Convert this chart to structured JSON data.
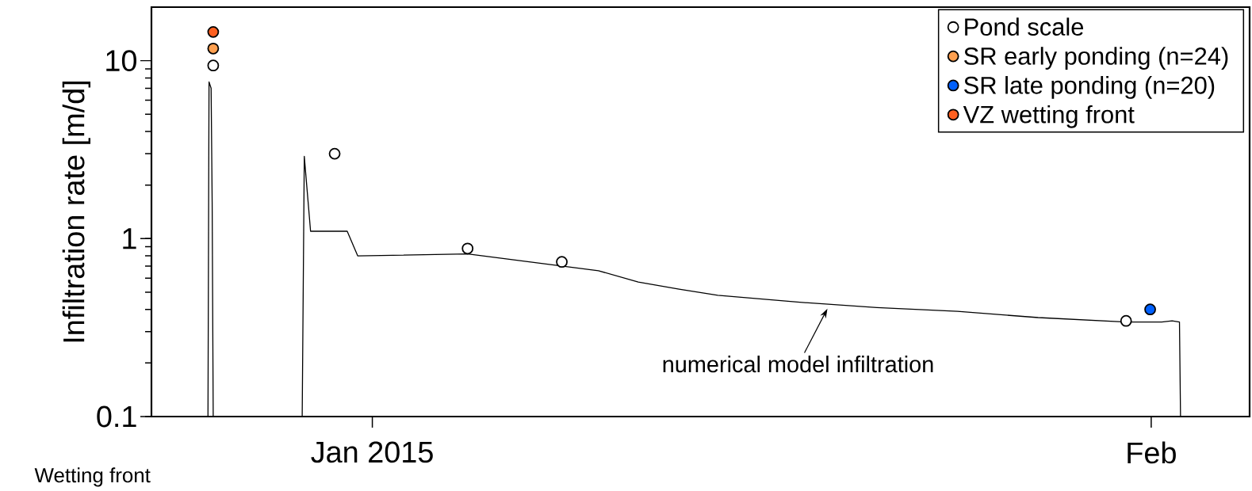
{
  "chart_data": {
    "type": "scatter",
    "ylabel": "Infiltration rate [m/d]",
    "log": "y",
    "xlim": [
      "2014-12-23T05:00",
      "2015-02-04T22:00"
    ],
    "xticks": [
      {
        "value": "2015-01-01",
        "label": "Jan 2015"
      },
      {
        "value": "2015-02-01",
        "label": "Feb"
      }
    ],
    "ylim": [
      0.1,
      20
    ],
    "yticks": [
      0.1,
      1,
      10
    ],
    "legend": "top right",
    "marker": "circle",
    "series": [
      {
        "name": "Pond scale",
        "color": "#ffffff",
        "x": [
          "2014-12-25T16:00",
          "2014-12-30T12:00",
          "2015-01-04T19:00",
          "2015-01-08T13:00",
          "2015-01-31T00:00"
        ],
        "values": [
          9.4,
          3.0,
          0.88,
          0.74,
          0.345
        ]
      },
      {
        "name": "SR early ponding (n=24)",
        "type": "scatter",
        "color": "#ffa050",
        "x": [
          "2014-12-25T16:00"
        ],
        "values": [
          11.7
        ]
      },
      {
        "name": "SR late ponding (n=20)",
        "type": "scatter",
        "color": "#0060ff",
        "x": [
          "2015-01-31T23:00"
        ],
        "values": [
          0.4
        ]
      },
      {
        "name": "VZ wetting front",
        "type": "scatter",
        "color": "#ff6020",
        "x": [
          "2014-12-25T16:00"
        ],
        "values": [
          14.5
        ]
      },
      {
        "type": "line",
        "color": "#000000",
        "marker": "none",
        "x": [
          "2014-12-25T11:00",
          "2014-12-25T12:00",
          "2014-12-25T14:00",
          "2014-12-25T15:00",
          "2014-12-25T16:00",
          "2014-12-27T00:00",
          "2014-12-29T05:00",
          "2014-12-29T07:00",
          "2014-12-29T13:00",
          "2014-12-31T00:00",
          "2014-12-31T10:00",
          "2015-01-04T19:00",
          "2015-01-10T00:00",
          "2015-01-11T14:00",
          "2015-01-13T05:00",
          "2015-01-14T18:00",
          "2015-01-17T22:00",
          "2015-01-21T02:00",
          "2015-01-24T07:00",
          "2015-01-27T12:00",
          "2015-01-31T00:00",
          "2015-02-01T10:00",
          "2015-02-01T20:00",
          "2015-02-02T03:00",
          "2015-02-02T04:00"
        ],
        "values": [
          0.1,
          7.6,
          7.0,
          1.6,
          0.1,
          null,
          0.1,
          2.9,
          1.1,
          1.1,
          0.8,
          0.82,
          0.66,
          0.57,
          0.52,
          0.48,
          0.44,
          0.41,
          0.39,
          0.36,
          0.34,
          0.34,
          0.345,
          0.34,
          0.1
        ]
      }
    ],
    "annotations": [
      {
        "text": "numerical model infiltration",
        "x": "2015-01-19T05:00",
        "y": 0.43
      },
      "Wetting front"
    ]
  }
}
